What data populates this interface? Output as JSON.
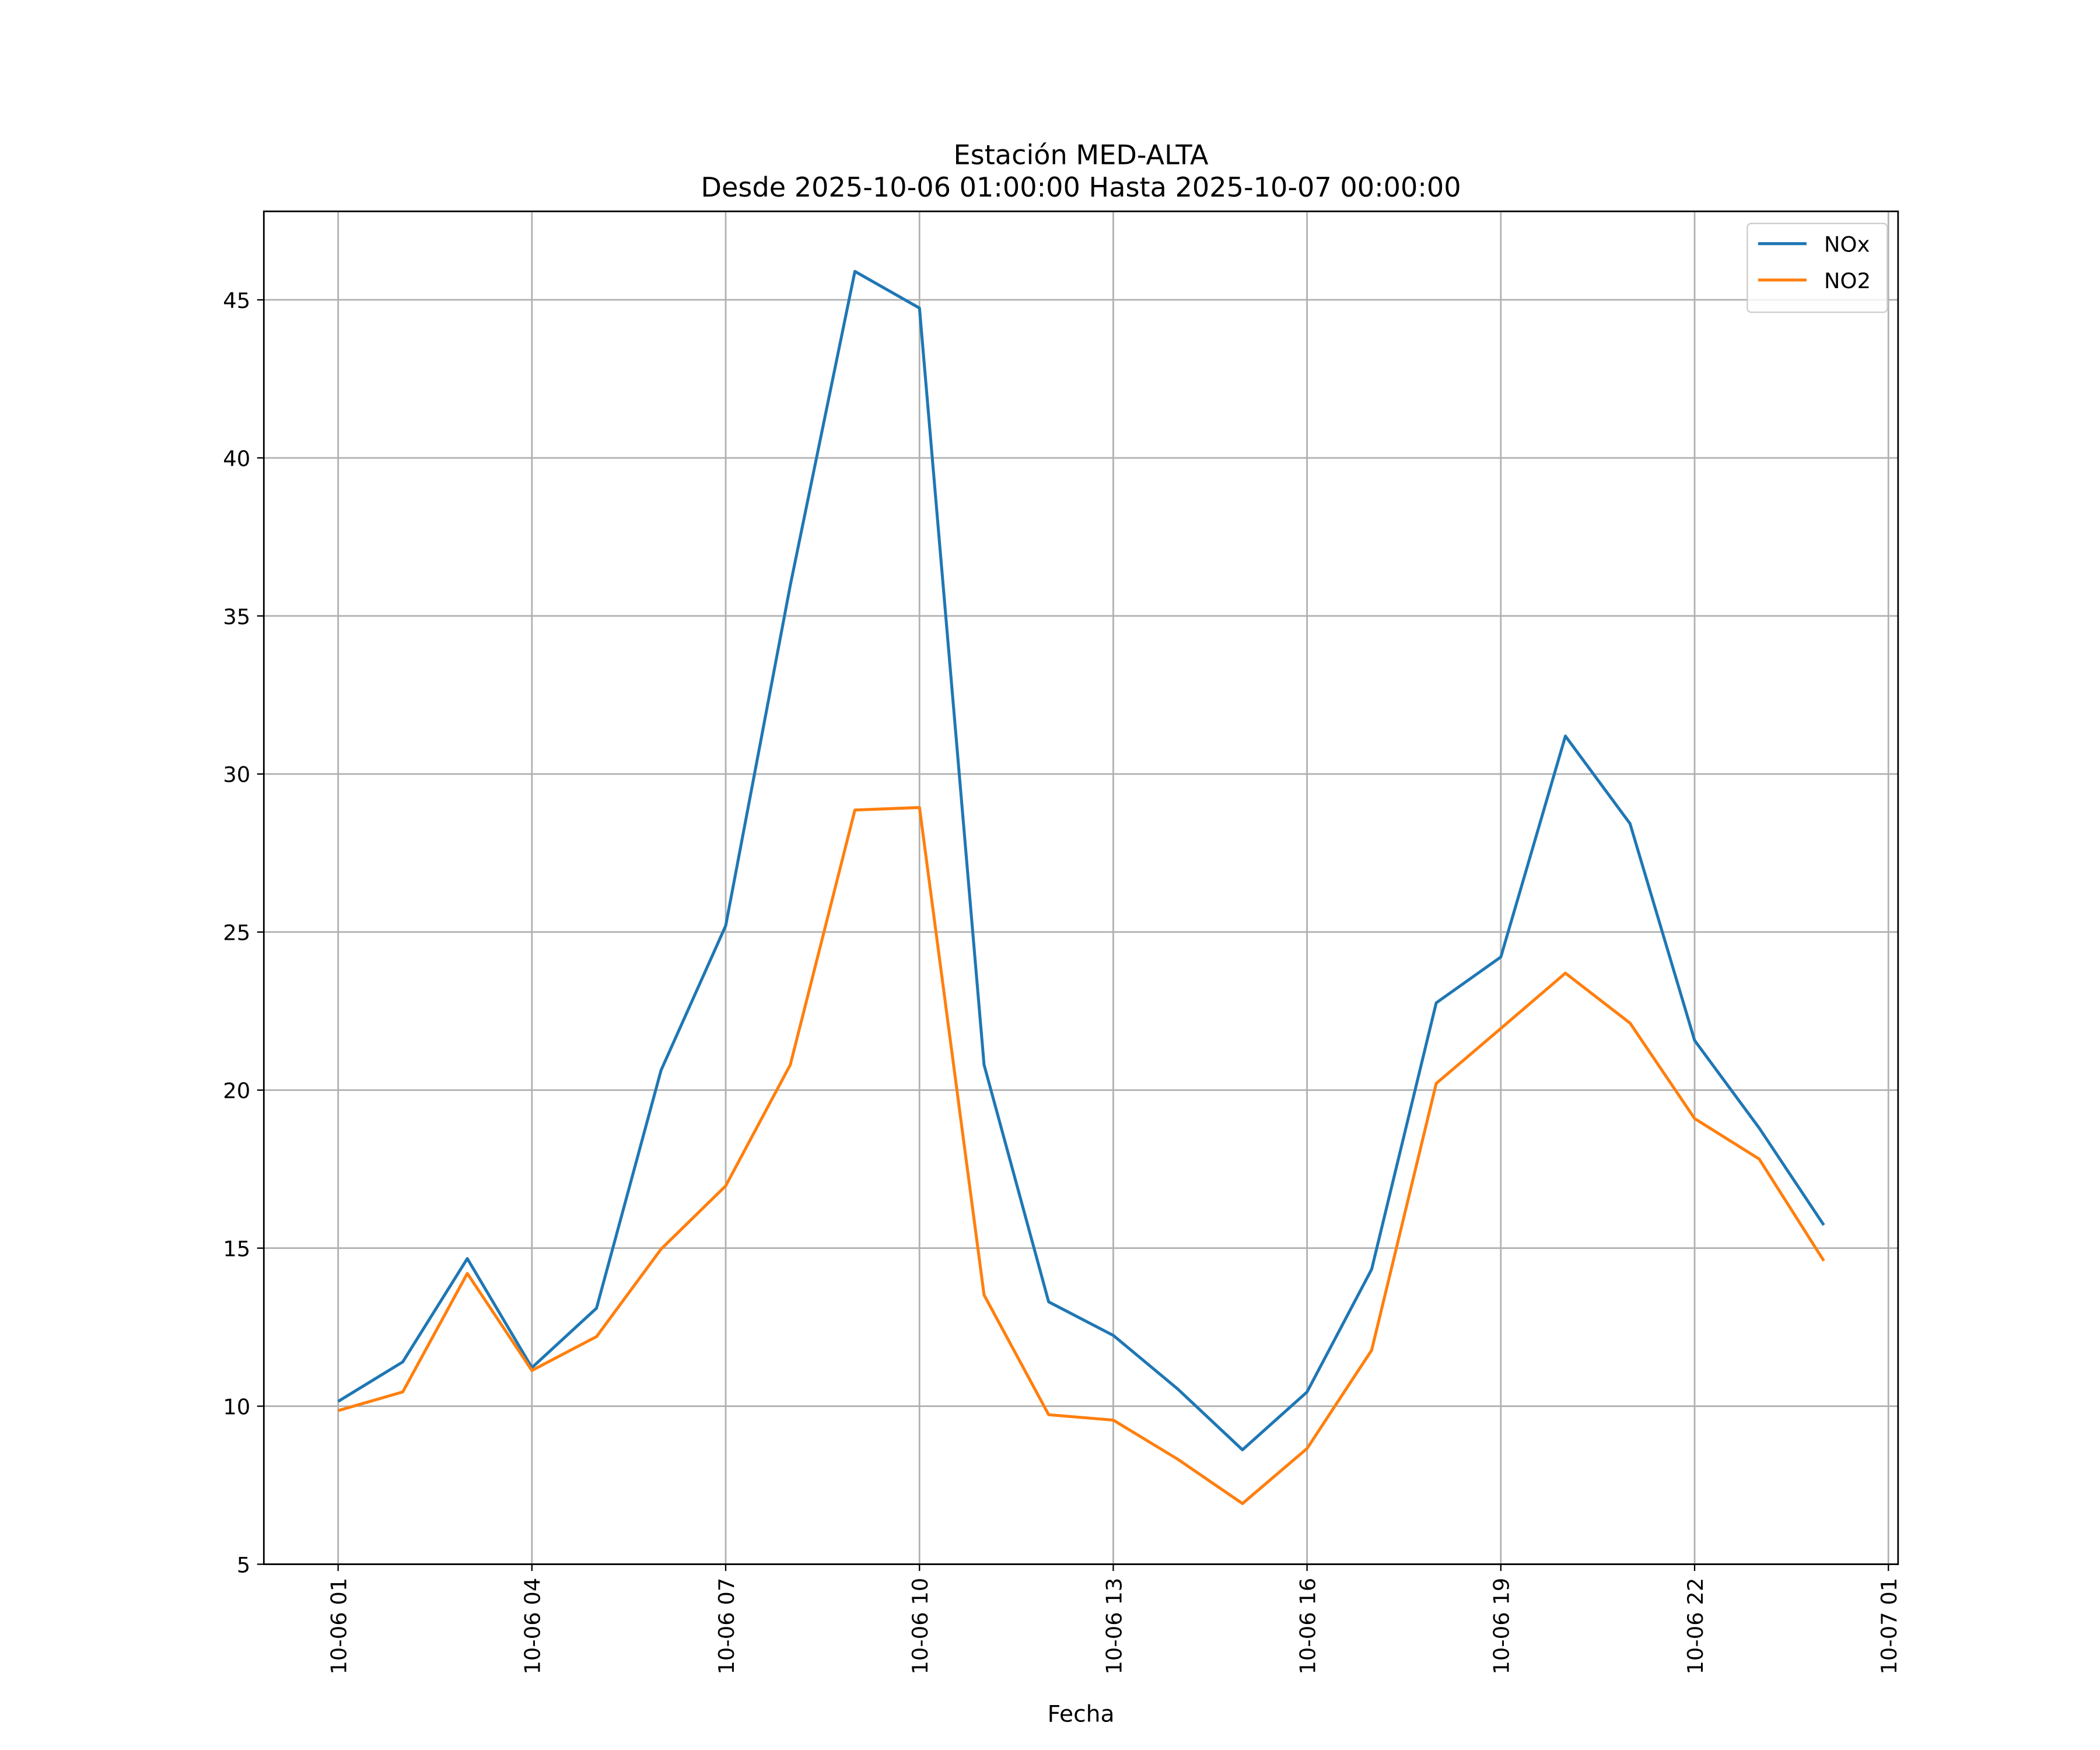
{
  "chart_data": {
    "type": "line",
    "title": "Estación MED-ALTA",
    "subtitle": "Desde 2025-10-06 01:00:00 Hasta 2025-10-07 00:00:00",
    "xlabel": "Fecha",
    "x": [
      "10-06 01",
      "10-06 02",
      "10-06 03",
      "10-06 04",
      "10-06 05",
      "10-06 06",
      "10-06 07",
      "10-06 08",
      "10-06 09",
      "10-06 10",
      "10-06 11",
      "10-06 12",
      "10-06 13",
      "10-06 14",
      "10-06 15",
      "10-06 16",
      "10-06 17",
      "10-06 18",
      "10-06 19",
      "10-06 20",
      "10-06 21",
      "10-06 22",
      "10-06 23",
      "10-07 00"
    ],
    "series": [
      {
        "name": "NOx",
        "color": "#1f77b4",
        "values": [
          10.15,
          11.4,
          14.67,
          11.22,
          13.1,
          20.63,
          25.2,
          35.97,
          45.9,
          44.74,
          20.8,
          13.3,
          12.24,
          10.54,
          8.62,
          10.45,
          14.33,
          22.76,
          24.21,
          31.2,
          28.43,
          21.57,
          18.8,
          15.73
        ]
      },
      {
        "name": "NO2",
        "color": "#ff7f0e",
        "values": [
          9.86,
          10.45,
          14.2,
          11.13,
          12.2,
          14.97,
          16.97,
          20.8,
          28.86,
          28.94,
          13.52,
          9.73,
          9.56,
          8.32,
          6.92,
          8.66,
          11.77,
          20.21,
          21.95,
          23.7,
          22.12,
          19.1,
          17.82,
          14.6
        ]
      }
    ],
    "xticks": [
      "10-06 01",
      "10-06 04",
      "10-06 07",
      "10-06 10",
      "10-06 13",
      "10-06 16",
      "10-06 19",
      "10-06 22",
      "10-07 01"
    ],
    "ylim": [
      5,
      47.8
    ],
    "yticks": [
      5,
      10,
      15,
      20,
      25,
      30,
      35,
      40,
      45
    ],
    "grid": true,
    "legend": "upper right"
  }
}
